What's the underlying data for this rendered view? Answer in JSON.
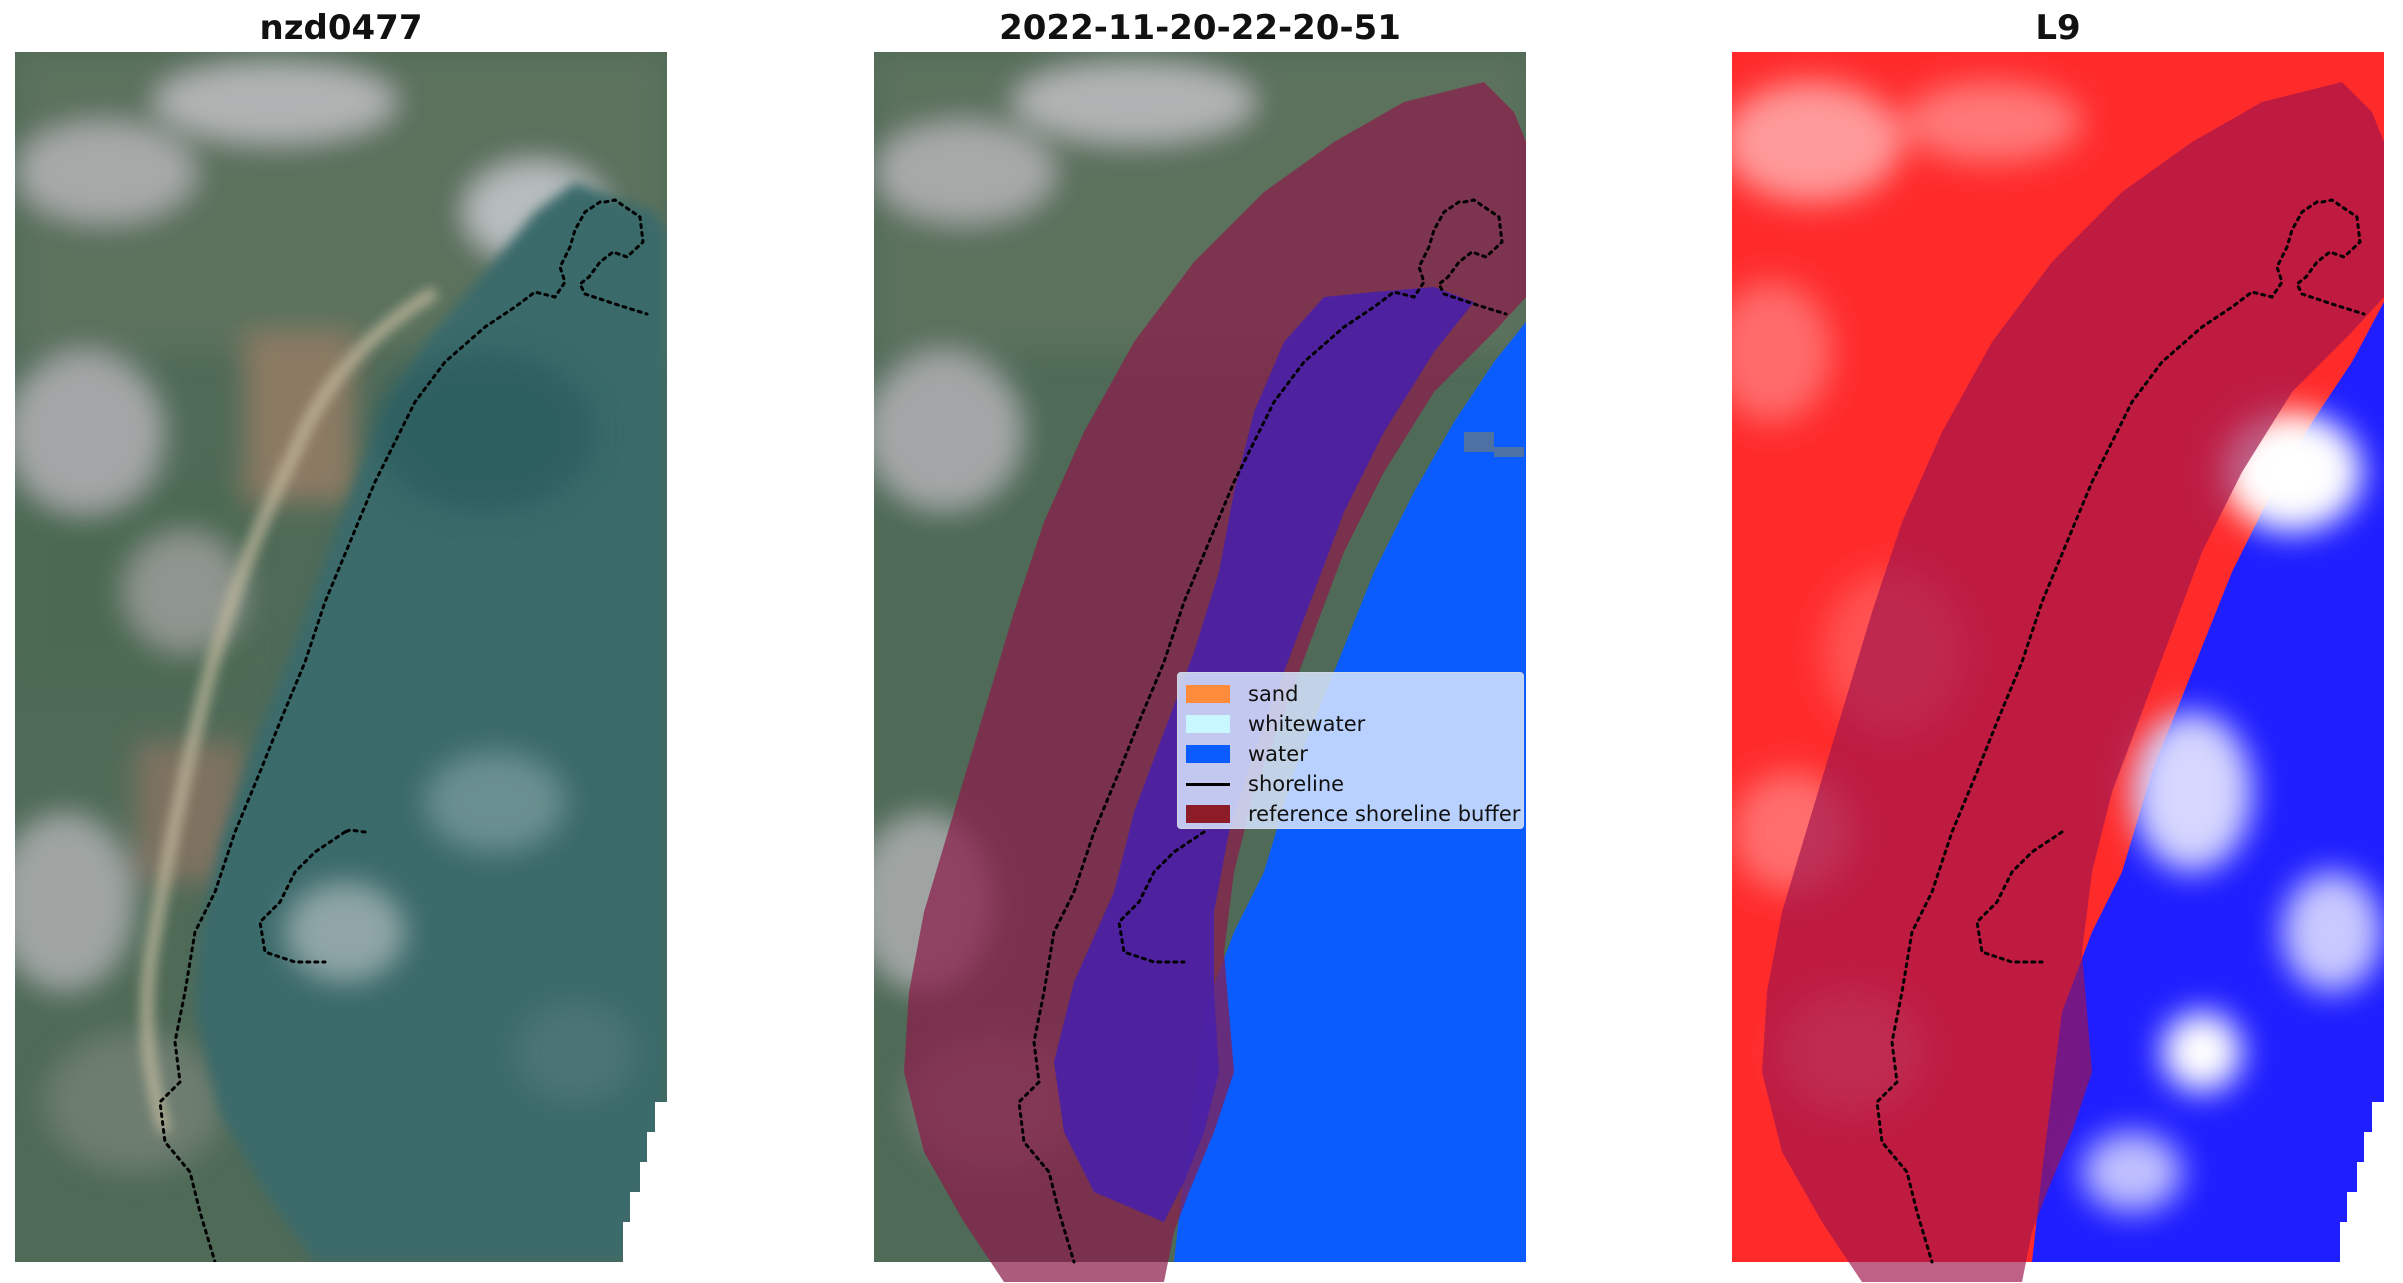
{
  "panels": [
    {
      "title": "nzd0477"
    },
    {
      "title": "2022-11-20-22-20-51"
    },
    {
      "title": "L9"
    }
  ],
  "legend": [
    {
      "label": "sand",
      "color": "#ff8c3a",
      "kind": "patch"
    },
    {
      "label": "whitewater",
      "color": "#c8f7ff",
      "kind": "patch"
    },
    {
      "label": "water",
      "color": "#0a5cff",
      "kind": "patch"
    },
    {
      "label": "shoreline",
      "color": "#000000",
      "kind": "line"
    },
    {
      "label": "reference shoreline buffer",
      "color": "#8b1c28",
      "kind": "patch"
    }
  ]
}
